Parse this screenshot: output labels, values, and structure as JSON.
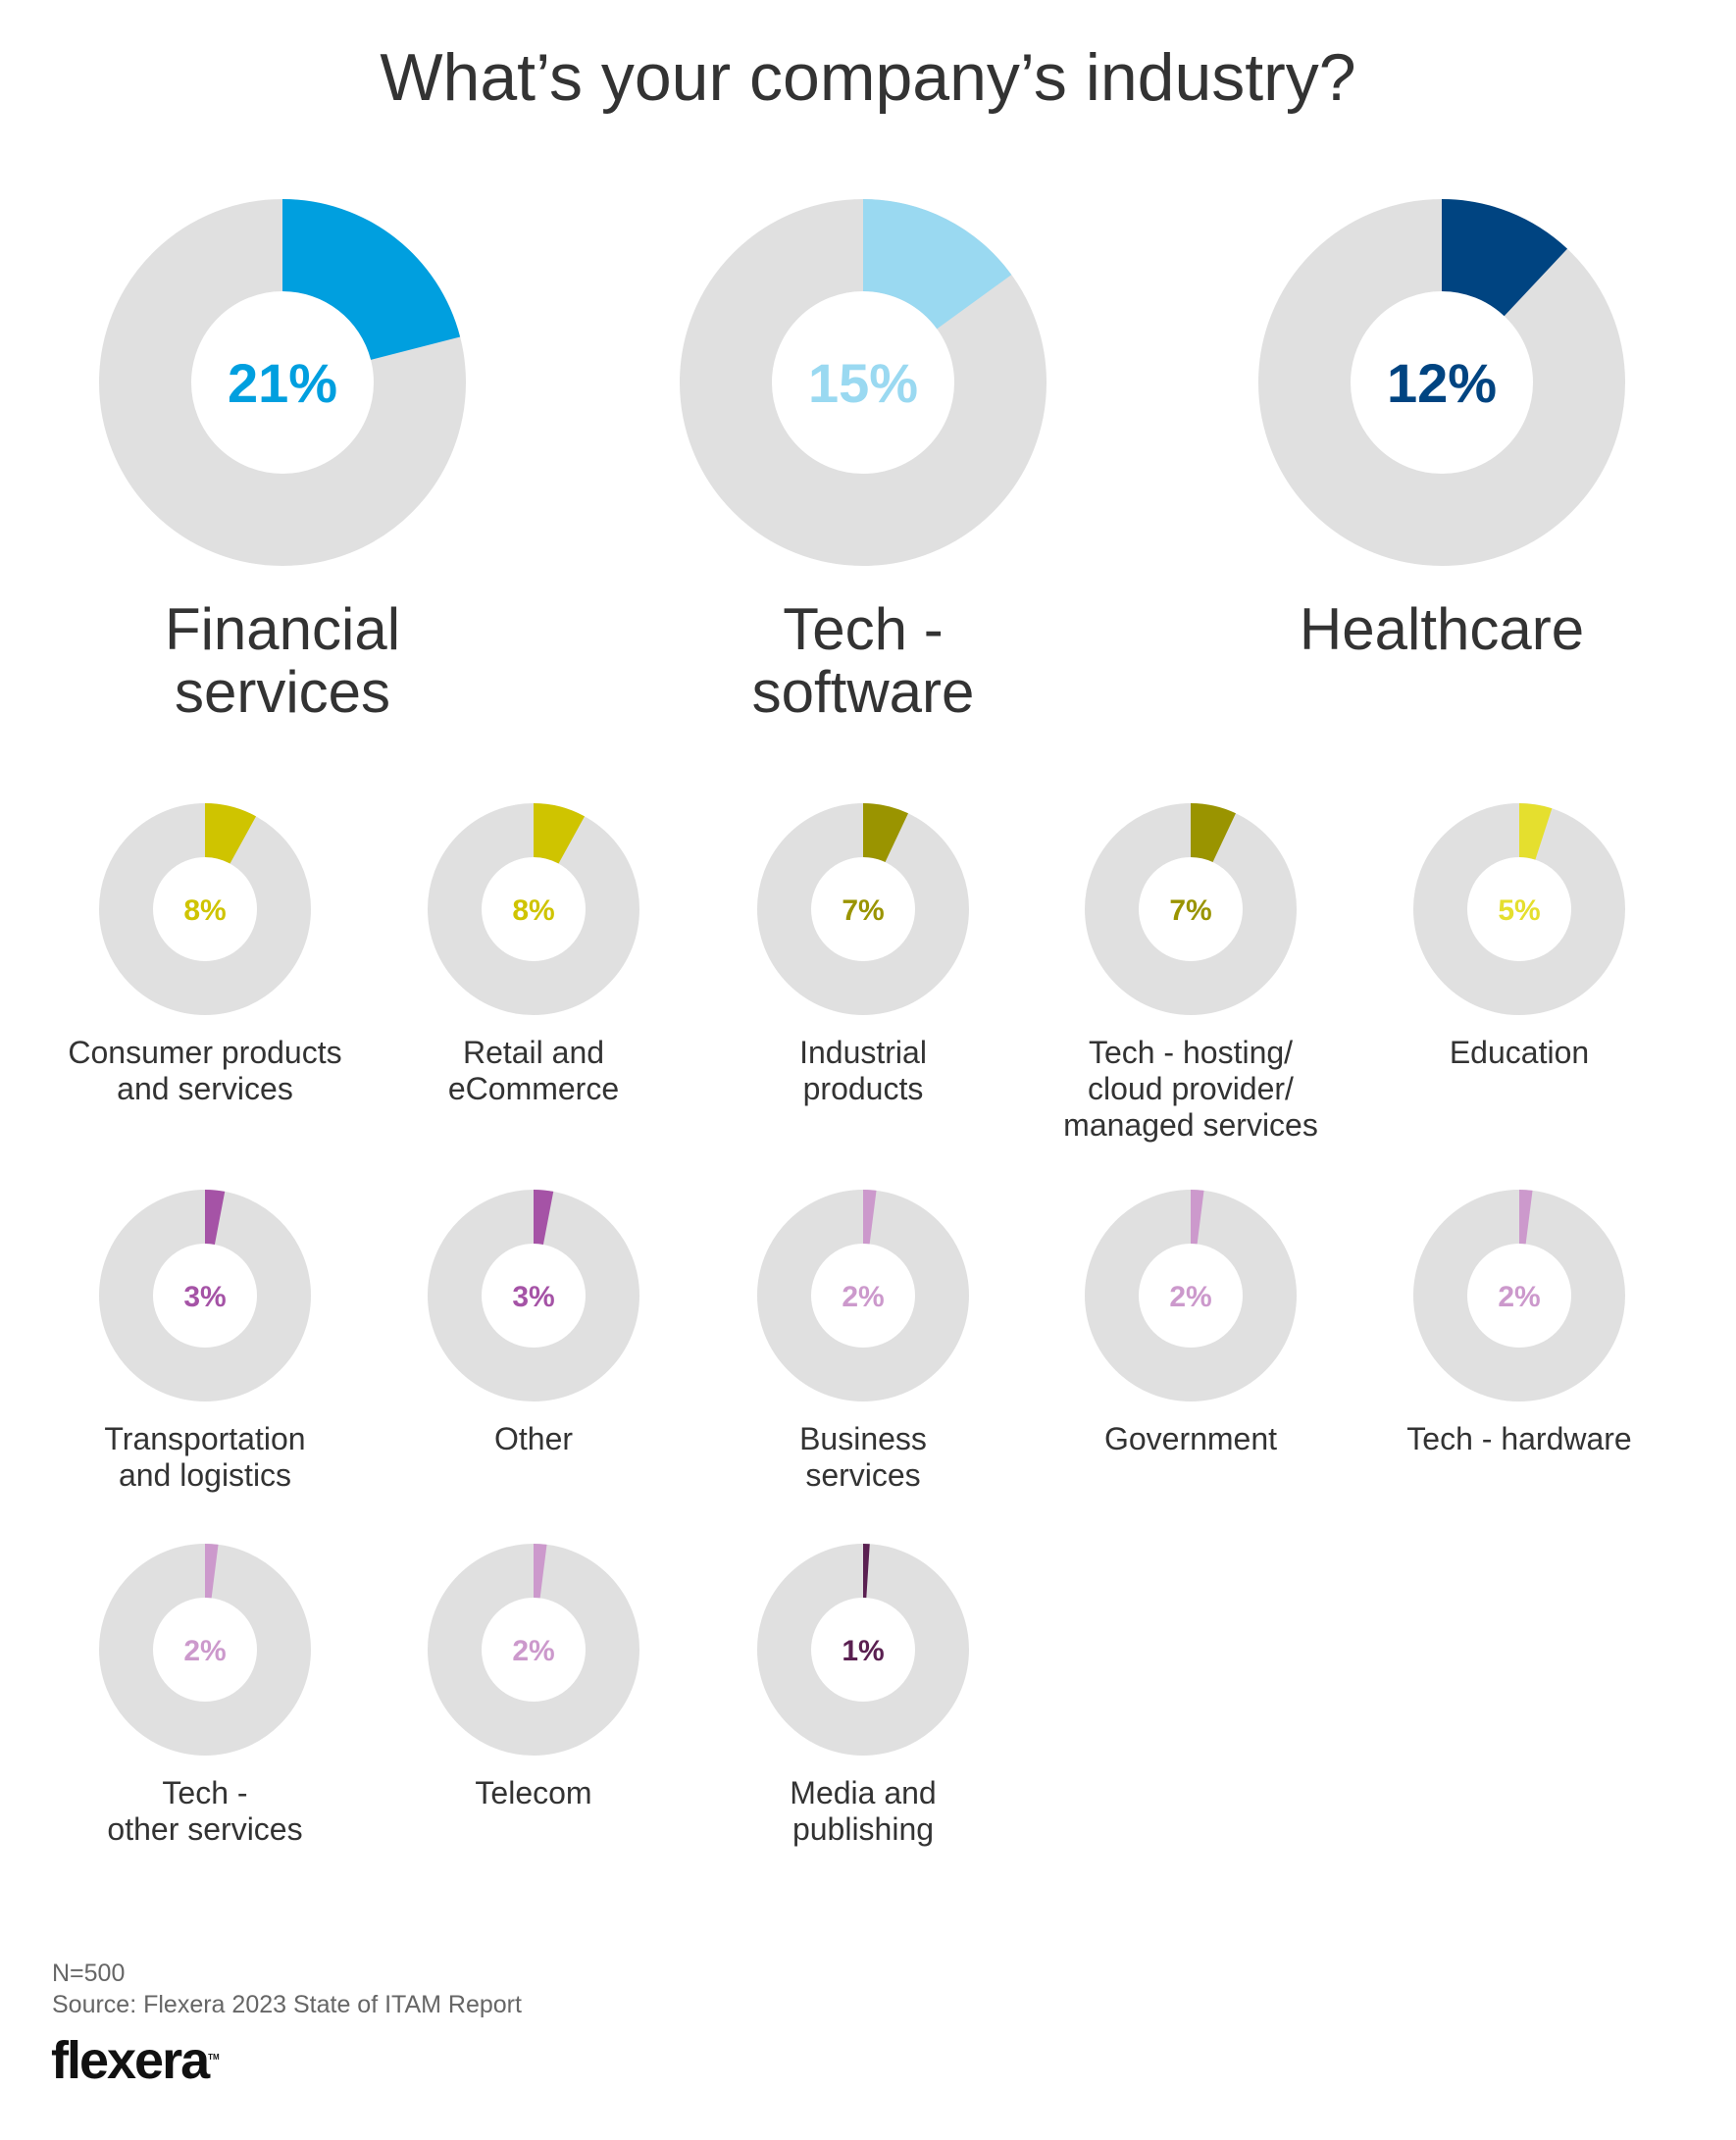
{
  "chart_data": {
    "type": "pie",
    "subtype": "donut-small-multiples",
    "title": "What’s your company’s industry?",
    "unit": "%",
    "track_color": "#E0E0E0",
    "items": [
      {
        "label": "Financial services",
        "value": 21,
        "value_label": "21%",
        "color": "#009FDF",
        "size": "large"
      },
      {
        "label": "Tech - software",
        "value": 15,
        "value_label": "15%",
        "color": "#9AD9F1",
        "size": "large"
      },
      {
        "label": "Healthcare",
        "value": 12,
        "value_label": "12%",
        "color": "#004481",
        "size": "large"
      },
      {
        "label": "Consumer products and services",
        "value": 8,
        "value_label": "8%",
        "color": "#CFC400",
        "size": "small"
      },
      {
        "label": "Retail and eCommerce",
        "value": 8,
        "value_label": "8%",
        "color": "#CFC400",
        "size": "small"
      },
      {
        "label": "Industrial products",
        "value": 7,
        "value_label": "7%",
        "color": "#9A9400",
        "size": "small"
      },
      {
        "label": "Tech - hosting/ cloud provider/ managed services",
        "value": 7,
        "value_label": "7%",
        "color": "#9A9400",
        "size": "small"
      },
      {
        "label": "Education",
        "value": 5,
        "value_label": "5%",
        "color": "#E5DF2E",
        "size": "small"
      },
      {
        "label": "Transportation and logistics",
        "value": 3,
        "value_label": "3%",
        "color": "#A553A6",
        "size": "small"
      },
      {
        "label": "Other",
        "value": 3,
        "value_label": "3%",
        "color": "#A553A6",
        "size": "small"
      },
      {
        "label": "Business services",
        "value": 2,
        "value_label": "2%",
        "color": "#CC99CC",
        "size": "small"
      },
      {
        "label": "Government",
        "value": 2,
        "value_label": "2%",
        "color": "#CC99CC",
        "size": "small"
      },
      {
        "label": "Tech - hardware",
        "value": 2,
        "value_label": "2%",
        "color": "#CC99CC",
        "size": "small"
      },
      {
        "label": "Tech - other services",
        "value": 2,
        "value_label": "2%",
        "color": "#CC99CC",
        "size": "small"
      },
      {
        "label": "Telecom",
        "value": 2,
        "value_label": "2%",
        "color": "#CC99CC",
        "size": "small"
      },
      {
        "label": "Media and publishing",
        "value": 1,
        "value_label": "1%",
        "color": "#5A2051",
        "size": "small"
      }
    ]
  },
  "footer": {
    "sample": "N=500",
    "source": "Source: Flexera 2023 State of ITAM Report",
    "logo": "flexera"
  }
}
